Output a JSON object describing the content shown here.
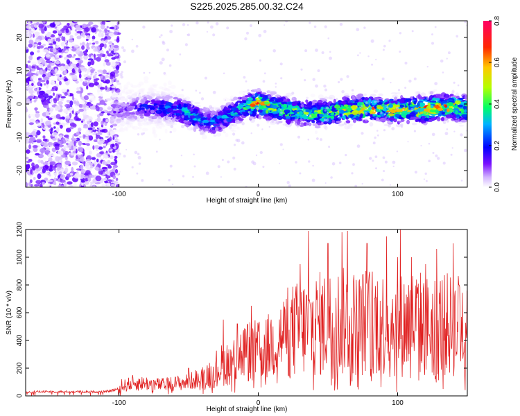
{
  "figure_title": "S225.2025.285.00.32.C24",
  "chart_data": [
    {
      "type": "heatmap",
      "title": "S225.2025.285.00.32.C24",
      "xlabel": "Height of straight line (km)",
      "ylabel": "Frequency (Hz)",
      "xlim": [
        -167,
        150
      ],
      "ylim": [
        -25,
        25
      ],
      "xticks": [
        -100,
        0,
        100
      ],
      "yticks": [
        -20,
        -10,
        0,
        10,
        20
      ],
      "colorbar": {
        "label": "Normalized spectral amplitude",
        "range": [
          0.0,
          0.8
        ],
        "ticks": [
          0.0,
          0.2,
          0.4,
          0.6,
          0.8
        ],
        "tick_labels": [
          "0.0",
          "0.2",
          "0.4",
          "0.6",
          "0.8"
        ],
        "colors": [
          "#ffffff",
          "#d2b4ff",
          "#6600ff",
          "#0000ff",
          "#00c8ff",
          "#00ff64",
          "#c8ff00",
          "#ffb400",
          "#ff0000",
          "#ff0064"
        ]
      },
      "ridge": {
        "x": [
          -100,
          -80,
          -60,
          -50,
          -40,
          -30,
          -20,
          -10,
          0,
          10,
          20,
          30,
          40,
          50,
          60,
          70,
          80,
          90,
          100,
          110,
          120,
          130,
          140,
          150
        ],
        "frequency": [
          -2,
          -1,
          -1.5,
          -3,
          -5,
          -5.5,
          -3,
          -1,
          0,
          -1,
          -2,
          -2.5,
          -3,
          -2.5,
          -2,
          -1.5,
          -1.5,
          -1.5,
          -2,
          -1.5,
          -1.5,
          -1,
          -1,
          -1.5
        ],
        "amplitude": [
          0.15,
          0.25,
          0.3,
          0.4,
          0.35,
          0.3,
          0.35,
          0.4,
          0.7,
          0.5,
          0.55,
          0.45,
          0.5,
          0.5,
          0.55,
          0.55,
          0.6,
          0.55,
          0.6,
          0.6,
          0.65,
          0.6,
          0.6,
          0.55
        ]
      },
      "noise_region": {
        "x_range": [
          -167,
          -100
        ],
        "amplitude": 0.2
      }
    },
    {
      "type": "line",
      "title": "",
      "xlabel": "Height of straight line (km)",
      "ylabel": "SNR (10 * v/v)",
      "xlim": [
        -167,
        150
      ],
      "ylim": [
        0,
        1200
      ],
      "xticks": [
        -100,
        0,
        100
      ],
      "yticks": [
        0,
        200,
        400,
        600,
        800,
        1000,
        1200
      ],
      "color": "#e02020",
      "series": [
        {
          "name": "SNR",
          "x": [
            -167,
            -150,
            -130,
            -110,
            -100,
            -95,
            -90,
            -80,
            -70,
            -60,
            -50,
            -45,
            -40,
            -35,
            -30,
            -25,
            -20,
            -15,
            -10,
            -5,
            0,
            5,
            10,
            15,
            20,
            25,
            30,
            35,
            40,
            45,
            50,
            55,
            60,
            65,
            70,
            75,
            80,
            85,
            90,
            95,
            100,
            105,
            110,
            115,
            120,
            125,
            130,
            135,
            140,
            145,
            150
          ],
          "values": [
            30,
            30,
            30,
            30,
            50,
            80,
            90,
            90,
            80,
            90,
            100,
            120,
            130,
            160,
            200,
            230,
            250,
            280,
            320,
            330,
            320,
            330,
            380,
            420,
            450,
            470,
            480,
            500,
            510,
            520,
            520,
            540,
            530,
            540,
            520,
            530,
            540,
            550,
            520,
            530,
            500,
            520,
            540,
            530,
            500,
            510,
            520,
            510,
            500,
            520,
            550
          ],
          "peaks": [
            [
              -98,
              120
            ],
            [
              -90,
              150
            ],
            [
              -50,
              200
            ],
            [
              -25,
              550
            ],
            [
              -15,
              520
            ],
            [
              -5,
              650
            ],
            [
              20,
              700
            ],
            [
              30,
              950
            ],
            [
              36,
              1190
            ],
            [
              50,
              1100
            ],
            [
              60,
              1180
            ],
            [
              64,
              1190
            ],
            [
              78,
              1100
            ],
            [
              92,
              1150
            ],
            [
              100,
              1000
            ],
            [
              102,
              1200
            ],
            [
              110,
              1000
            ],
            [
              120,
              950
            ],
            [
              128,
              1060
            ],
            [
              140,
              1100
            ],
            [
              144,
              800
            ],
            [
              150,
              760
            ]
          ]
        }
      ]
    }
  ]
}
